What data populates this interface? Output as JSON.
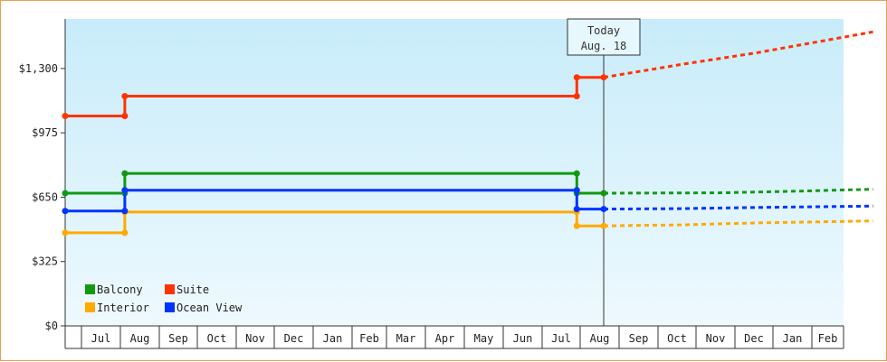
{
  "chart_data": {
    "type": "line",
    "y_ticks": [
      "$0",
      "$325",
      "$650",
      "$975",
      "$1,300"
    ],
    "ylim": [
      0,
      1550
    ],
    "x_ticks": [
      "",
      "Jul",
      "Aug",
      "Sep",
      "Oct",
      "Nov",
      "Dec",
      "Jan",
      "Feb",
      "Mar",
      "Apr",
      "May",
      "Jun",
      "Jul",
      "Aug",
      "Sep",
      "Oct",
      "Nov",
      "Dec",
      "Jan",
      "Feb"
    ],
    "today_label_line1": "Today",
    "today_label_line2": "Aug. 18",
    "series": [
      {
        "name": "Balcony",
        "color": "#119911",
        "points": [
          [
            0,
            670
          ],
          [
            1.55,
            670
          ],
          [
            1.55,
            770
          ],
          [
            13.3,
            770
          ],
          [
            13.3,
            670
          ],
          [
            14.0,
            670
          ]
        ],
        "forecast": [
          [
            14.0,
            670
          ],
          [
            17.0,
            672
          ],
          [
            19.0,
            680
          ],
          [
            21.0,
            690
          ]
        ]
      },
      {
        "name": "Suite",
        "color": "#ff3300",
        "points": [
          [
            0,
            1060
          ],
          [
            1.55,
            1060
          ],
          [
            1.55,
            1160
          ],
          [
            13.3,
            1160
          ],
          [
            13.3,
            1255
          ],
          [
            14.0,
            1255
          ]
        ],
        "forecast": [
          [
            14.0,
            1255
          ],
          [
            16.0,
            1320
          ],
          [
            18.0,
            1380
          ],
          [
            21.0,
            1485
          ]
        ]
      },
      {
        "name": "Interior",
        "color": "#ffaa00",
        "points": [
          [
            0,
            470
          ],
          [
            1.55,
            470
          ],
          [
            1.55,
            575
          ],
          [
            13.3,
            575
          ],
          [
            13.3,
            505
          ],
          [
            14.0,
            505
          ]
        ],
        "forecast": [
          [
            14.0,
            505
          ],
          [
            16.0,
            510
          ],
          [
            18.0,
            520
          ],
          [
            21.0,
            530
          ]
        ]
      },
      {
        "name": "Ocean View",
        "color": "#0033ff",
        "points": [
          [
            0,
            580
          ],
          [
            1.55,
            580
          ],
          [
            1.55,
            685
          ],
          [
            13.3,
            685
          ],
          [
            13.3,
            590
          ],
          [
            14.0,
            590
          ]
        ],
        "forecast": [
          [
            14.0,
            590
          ],
          [
            16.0,
            592
          ],
          [
            18.0,
            598
          ],
          [
            21.0,
            605
          ]
        ]
      }
    ],
    "markers": [
      {
        "series": "Balcony",
        "points": [
          [
            0,
            670
          ],
          [
            1.55,
            670
          ],
          [
            1.55,
            770
          ],
          [
            13.3,
            770
          ],
          [
            13.3,
            670
          ],
          [
            14.0,
            670
          ]
        ]
      },
      {
        "series": "Suite",
        "points": [
          [
            0,
            1060
          ],
          [
            1.55,
            1060
          ],
          [
            1.55,
            1160
          ],
          [
            13.3,
            1160
          ],
          [
            13.3,
            1255
          ],
          [
            14.0,
            1255
          ]
        ]
      },
      {
        "series": "Interior",
        "points": [
          [
            0,
            470
          ],
          [
            1.55,
            470
          ],
          [
            1.55,
            575
          ],
          [
            13.3,
            575
          ],
          [
            13.3,
            505
          ],
          [
            14.0,
            505
          ]
        ]
      },
      {
        "series": "Ocean View",
        "points": [
          [
            0,
            580
          ],
          [
            1.55,
            580
          ],
          [
            1.55,
            685
          ],
          [
            13.3,
            685
          ],
          [
            13.3,
            590
          ],
          [
            14.0,
            590
          ]
        ]
      }
    ],
    "today_x": 14.0,
    "legend": [
      {
        "label": "Balcony",
        "color": "#119911"
      },
      {
        "label": "Suite",
        "color": "#ff3300"
      },
      {
        "label": "Interior",
        "color": "#ffaa00"
      },
      {
        "label": "Ocean View",
        "color": "#0033ff"
      }
    ],
    "legend_position": "bottom-left",
    "grid": false
  }
}
